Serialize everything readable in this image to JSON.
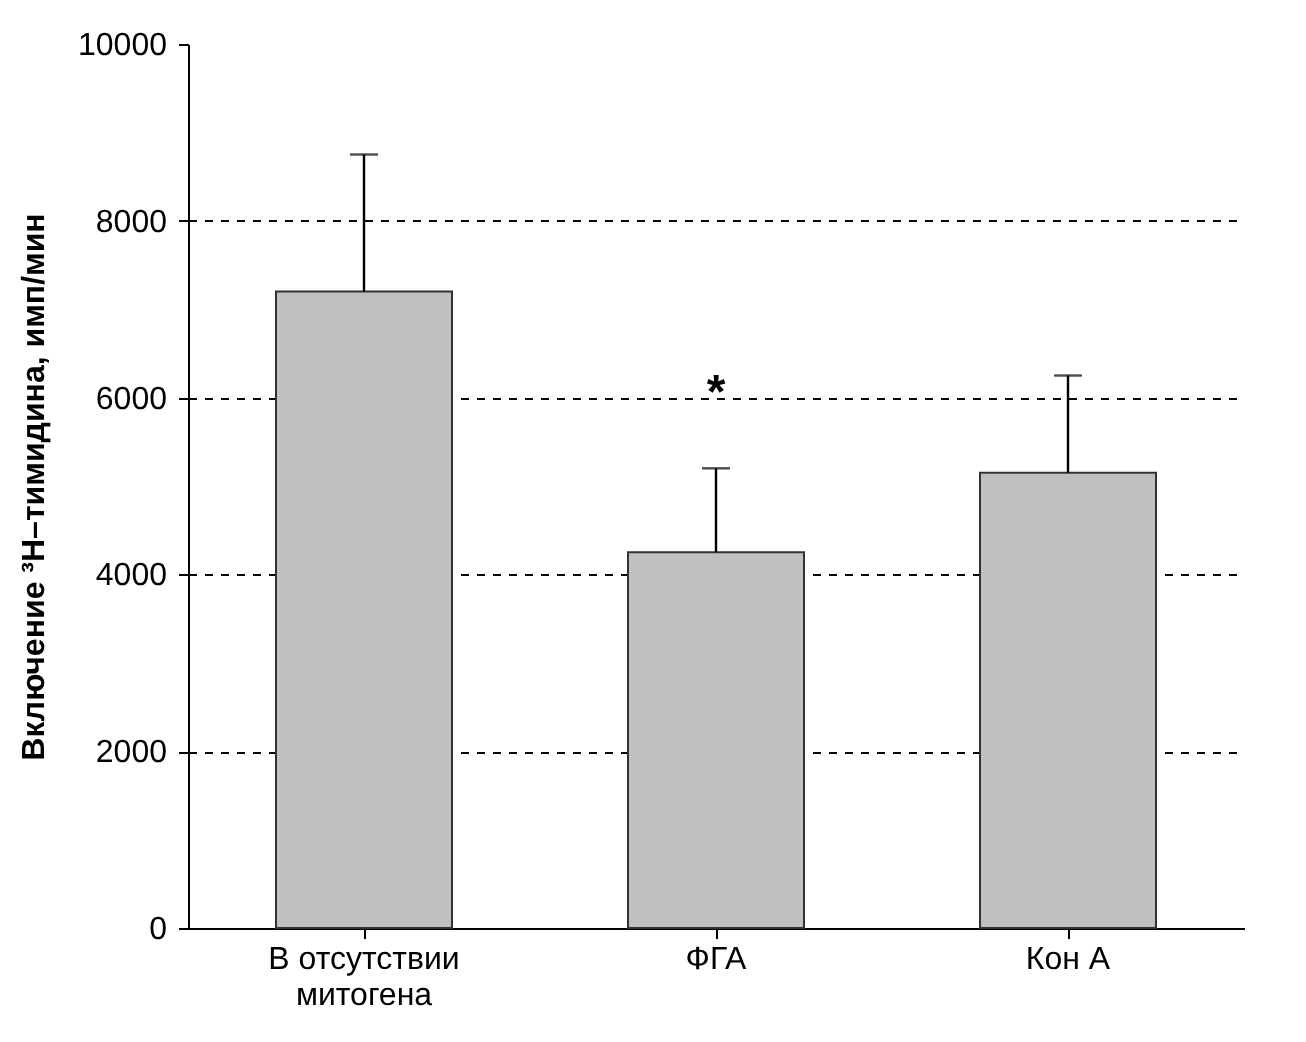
{
  "chart_data": {
    "type": "bar",
    "ylabel": "Включение ³H–тимидина, имп/мин",
    "categories": [
      "В отсутствии\nмитогена",
      "ФГА",
      "Кон А"
    ],
    "values": [
      7200,
      4250,
      5150
    ],
    "color": "#c0c0c0",
    "errors": [
      [
        7200,
        8750
      ],
      [
        4250,
        5200
      ],
      [
        5150,
        6250
      ]
    ],
    "ylim": [
      0,
      10000
    ],
    "yticks": [
      0,
      2000,
      4000,
      6000,
      8000,
      10000
    ],
    "grid": "y",
    "annotations": [
      "*"
    ]
  }
}
